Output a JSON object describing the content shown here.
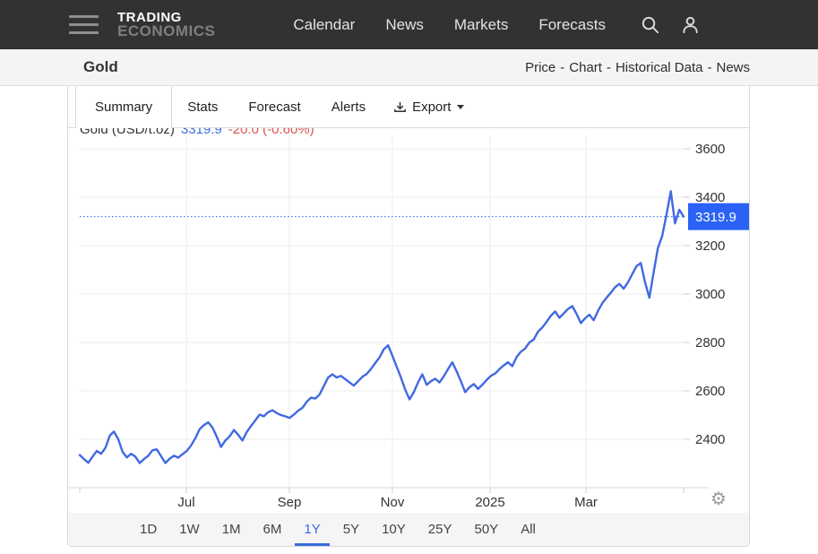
{
  "nav": {
    "brand_top": "TRADING",
    "brand_bottom": "ECONOMICS",
    "items": [
      "Calendar",
      "News",
      "Markets",
      "Forecasts"
    ]
  },
  "header": {
    "title": "Gold",
    "links": [
      "Price",
      "Chart",
      "Historical Data",
      "News"
    ],
    "separator": "-"
  },
  "tabs": {
    "items": [
      "Summary",
      "Stats",
      "Forecast",
      "Alerts"
    ],
    "active": "Summary",
    "export_label": "Export"
  },
  "ranges": {
    "items": [
      "1D",
      "1W",
      "1M",
      "6M",
      "1Y",
      "5Y",
      "10Y",
      "25Y",
      "50Y",
      "All"
    ],
    "active": "1Y"
  },
  "chart_data": {
    "type": "line",
    "title": "Gold (USD/t.oz)",
    "current_price_label": "3319.9",
    "change_label": "-20.0 (-0.60%)",
    "current_price_value": 3319.9,
    "y_ticks": [
      3600,
      3400,
      3200,
      3000,
      2800,
      2600,
      2400
    ],
    "x_tick_labels": [
      "Jul",
      "Sep",
      "Nov",
      "2025",
      "Mar"
    ],
    "ylim": [
      2250,
      3660
    ],
    "grid": true,
    "legend": "none",
    "colors": {
      "line": "#4169e1",
      "badge": "#2a62f5",
      "badge_text": "#ffffff",
      "dotted_line": "#2a62f5",
      "price_text": "#3d6be0",
      "change_text": "#d9534f",
      "grid": "#ececec",
      "axis_line": "#d9d9d9",
      "tick": "#cccccc",
      "axis_text": "#333333"
    },
    "series": [
      {
        "name": "Gold (USD/t.oz)",
        "values": [
          2335,
          2318,
          2303,
          2328,
          2352,
          2340,
          2365,
          2415,
          2432,
          2400,
          2348,
          2325,
          2340,
          2328,
          2302,
          2318,
          2332,
          2355,
          2358,
          2330,
          2302,
          2320,
          2332,
          2324,
          2338,
          2352,
          2375,
          2405,
          2442,
          2458,
          2470,
          2448,
          2410,
          2368,
          2395,
          2412,
          2438,
          2418,
          2395,
          2430,
          2455,
          2478,
          2502,
          2495,
          2512,
          2520,
          2508,
          2500,
          2495,
          2488,
          2502,
          2518,
          2530,
          2555,
          2572,
          2568,
          2585,
          2620,
          2655,
          2668,
          2655,
          2662,
          2648,
          2635,
          2622,
          2640,
          2658,
          2670,
          2690,
          2715,
          2738,
          2772,
          2788,
          2745,
          2700,
          2655,
          2605,
          2565,
          2595,
          2635,
          2668,
          2625,
          2640,
          2650,
          2635,
          2660,
          2690,
          2718,
          2680,
          2640,
          2595,
          2615,
          2628,
          2608,
          2625,
          2645,
          2662,
          2672,
          2690,
          2705,
          2718,
          2702,
          2740,
          2762,
          2775,
          2800,
          2812,
          2845,
          2862,
          2885,
          2910,
          2928,
          2902,
          2920,
          2938,
          2950,
          2918,
          2880,
          2900,
          2915,
          2892,
          2930,
          2962,
          2985,
          3005,
          3028,
          3042,
          3022,
          3048,
          3082,
          3115,
          3128,
          3048,
          2985,
          3088,
          3190,
          3240,
          3328,
          3425,
          3292,
          3348,
          3320
        ]
      }
    ]
  }
}
